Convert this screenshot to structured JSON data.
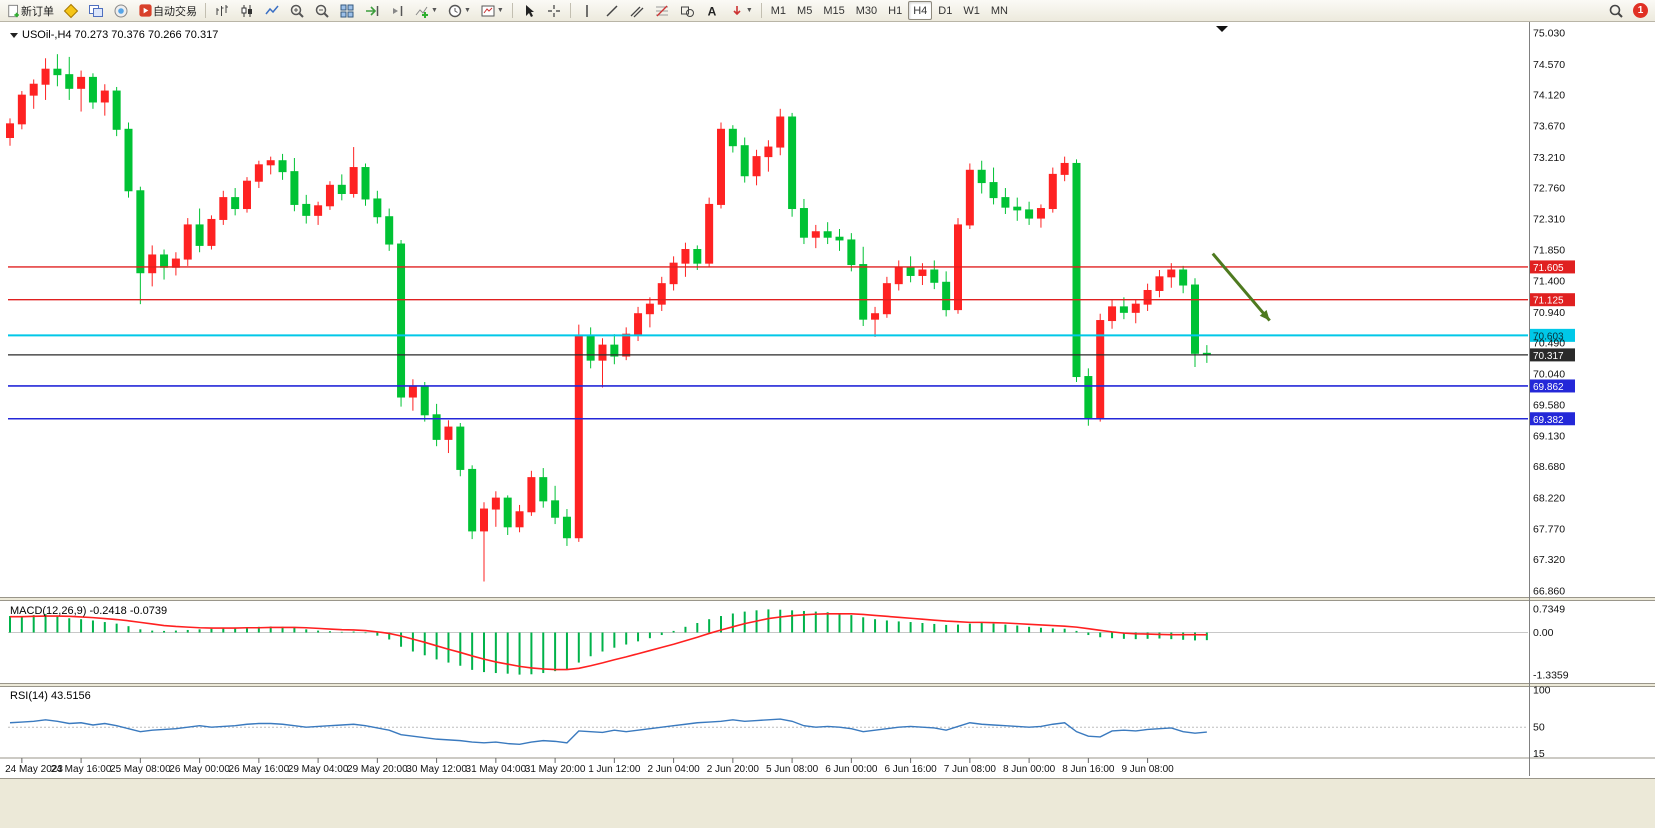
{
  "toolbar": {
    "new_order_label": "新订单",
    "autotrading_label": "自动交易",
    "timeframes": [
      "M1",
      "M5",
      "M15",
      "M30",
      "H1",
      "H4",
      "D1",
      "W1",
      "MN"
    ],
    "active_timeframe": "H4",
    "notification_badge": "1",
    "icon_buttons": [
      "new-order",
      "market-watch",
      "data-window",
      "navigator",
      "autotrading",
      "bar-chart",
      "candlestick-chart",
      "line-chart",
      "zoom-in",
      "zoom-out",
      "tile-windows",
      "auto-scroll",
      "chart-shift",
      "add-indicator",
      "periods",
      "templates",
      "cursor",
      "crosshair",
      "vertical-line",
      "trendline",
      "channel",
      "fibonacci",
      "shapes",
      "text",
      "arrows",
      "search"
    ]
  },
  "chart_data": {
    "type": "candlestick",
    "title": "USOil-,H4",
    "ohlc_label": "USOil-,H4 70.273 70.376 70.266 70.317",
    "colors": {
      "up": "#fe2222",
      "down": "#00c234",
      "background": "#ffffff"
    },
    "price_axis_ticks": [
      "75.030",
      "74.570",
      "74.120",
      "73.670",
      "73.210",
      "72.760",
      "72.310",
      "71.850",
      "71.400",
      "70.940",
      "70.490",
      "70.040",
      "69.580",
      "69.130",
      "68.680",
      "68.220",
      "67.770",
      "67.320",
      "66.860"
    ],
    "time_labels": [
      "24 May 2023",
      "24 May 16:00",
      "25 May 08:00",
      "26 May 00:00",
      "26 May 16:00",
      "29 May 04:00",
      "29 May 20:00",
      "30 May 12:00",
      "31 May 04:00",
      "31 May 20:00",
      "1 Jun 12:00",
      "2 Jun 04:00",
      "2 Jun 20:00",
      "5 Jun 08:00",
      "6 Jun 00:00",
      "6 Jun 16:00",
      "7 Jun 08:00",
      "8 Jun 00:00",
      "8 Jun 16:00",
      "9 Jun 08:00"
    ],
    "hlines": [
      {
        "price": 71.605,
        "tag": "71.605",
        "color": "#e02020",
        "width": 1.4,
        "tag_text": "#ffffff"
      },
      {
        "price": 71.125,
        "tag": "71.125",
        "color": "#e02020",
        "width": 1.4,
        "tag_text": "#ffffff"
      },
      {
        "price": 70.603,
        "tag": "70.603",
        "color": "#00c8e8",
        "width": 2.0,
        "tag_text": "#083038"
      },
      {
        "price": 70.317,
        "tag": "70.317",
        "color": "#2a2a2a",
        "width": 1.2,
        "tag_text": "#ffffff"
      },
      {
        "price": 69.862,
        "tag": "69.862",
        "color": "#2428d8",
        "width": 1.6,
        "tag_text": "#ffffff"
      },
      {
        "price": 69.382,
        "tag": "69.382",
        "color": "#2428d8",
        "width": 1.6,
        "tag_text": "#ffffff"
      }
    ],
    "annotations": {
      "arrow": {
        "from_bar": 101.5,
        "from_price": 71.8,
        "to_bar": 106.3,
        "to_price": 70.82,
        "color": "#4e7a1f"
      }
    },
    "candles": [
      [
        73.5,
        73.78,
        73.38,
        73.7
      ],
      [
        73.7,
        74.18,
        73.62,
        74.12
      ],
      [
        74.12,
        74.35,
        73.92,
        74.28
      ],
      [
        74.28,
        74.66,
        74.05,
        74.5
      ],
      [
        74.5,
        74.72,
        74.25,
        74.42
      ],
      [
        74.42,
        74.68,
        74.05,
        74.22
      ],
      [
        74.22,
        74.48,
        73.88,
        74.38
      ],
      [
        74.38,
        74.44,
        73.92,
        74.02
      ],
      [
        74.02,
        74.28,
        73.82,
        74.18
      ],
      [
        74.18,
        74.24,
        73.52,
        73.62
      ],
      [
        73.62,
        73.72,
        72.62,
        72.72
      ],
      [
        72.72,
        72.78,
        71.06,
        71.52
      ],
      [
        71.52,
        71.92,
        71.32,
        71.78
      ],
      [
        71.78,
        71.86,
        71.42,
        71.6
      ],
      [
        71.6,
        71.82,
        71.48,
        71.72
      ],
      [
        71.72,
        72.32,
        71.62,
        72.22
      ],
      [
        72.22,
        72.46,
        71.82,
        71.92
      ],
      [
        71.92,
        72.36,
        71.86,
        72.3
      ],
      [
        72.3,
        72.72,
        72.22,
        72.62
      ],
      [
        72.62,
        72.76,
        72.36,
        72.46
      ],
      [
        72.46,
        72.92,
        72.4,
        72.86
      ],
      [
        72.86,
        73.16,
        72.76,
        73.1
      ],
      [
        73.1,
        73.22,
        72.96,
        73.16
      ],
      [
        73.16,
        73.26,
        72.88,
        73.0
      ],
      [
        73.0,
        73.2,
        72.42,
        72.52
      ],
      [
        72.52,
        72.66,
        72.24,
        72.36
      ],
      [
        72.36,
        72.56,
        72.22,
        72.5
      ],
      [
        72.5,
        72.86,
        72.44,
        72.8
      ],
      [
        72.8,
        72.96,
        72.58,
        72.68
      ],
      [
        72.68,
        73.36,
        72.62,
        73.06
      ],
      [
        73.06,
        73.12,
        72.5,
        72.6
      ],
      [
        72.6,
        72.72,
        72.24,
        72.34
      ],
      [
        72.34,
        72.46,
        71.84,
        71.94
      ],
      [
        71.94,
        72.0,
        69.56,
        69.7
      ],
      [
        69.7,
        69.96,
        69.5,
        69.86
      ],
      [
        69.86,
        69.92,
        69.34,
        69.44
      ],
      [
        69.44,
        69.6,
        68.98,
        69.08
      ],
      [
        69.08,
        69.36,
        68.88,
        69.26
      ],
      [
        69.26,
        69.32,
        68.54,
        68.64
      ],
      [
        68.64,
        68.7,
        67.62,
        67.74
      ],
      [
        67.74,
        68.16,
        67.0,
        68.06
      ],
      [
        68.06,
        68.32,
        67.8,
        68.22
      ],
      [
        68.22,
        68.26,
        67.68,
        67.8
      ],
      [
        67.8,
        68.12,
        67.72,
        68.02
      ],
      [
        68.02,
        68.62,
        67.96,
        68.52
      ],
      [
        68.52,
        68.66,
        68.08,
        68.18
      ],
      [
        68.18,
        68.4,
        67.84,
        67.94
      ],
      [
        67.94,
        68.06,
        67.52,
        67.64
      ],
      [
        67.64,
        70.76,
        67.58,
        70.6
      ],
      [
        70.6,
        70.72,
        70.12,
        70.24
      ],
      [
        70.24,
        70.56,
        69.84,
        70.46
      ],
      [
        70.46,
        70.62,
        70.18,
        70.3
      ],
      [
        70.3,
        70.72,
        70.24,
        70.62
      ],
      [
        70.62,
        71.02,
        70.52,
        70.92
      ],
      [
        70.92,
        71.16,
        70.72,
        71.06
      ],
      [
        71.06,
        71.46,
        70.96,
        71.36
      ],
      [
        71.36,
        71.76,
        71.26,
        71.66
      ],
      [
        71.66,
        71.96,
        71.46,
        71.86
      ],
      [
        71.86,
        71.92,
        71.56,
        71.66
      ],
      [
        71.66,
        72.62,
        71.6,
        72.52
      ],
      [
        72.52,
        73.72,
        72.46,
        73.62
      ],
      [
        73.62,
        73.68,
        73.28,
        73.38
      ],
      [
        73.38,
        73.5,
        72.84,
        72.94
      ],
      [
        72.94,
        73.32,
        72.8,
        73.22
      ],
      [
        73.22,
        73.46,
        73.0,
        73.36
      ],
      [
        73.36,
        73.92,
        73.24,
        73.8
      ],
      [
        73.8,
        73.86,
        72.34,
        72.46
      ],
      [
        72.46,
        72.6,
        71.94,
        72.04
      ],
      [
        72.04,
        72.22,
        71.88,
        72.12
      ],
      [
        72.12,
        72.26,
        71.94,
        72.04
      ],
      [
        72.04,
        72.16,
        71.84,
        72.0
      ],
      [
        72.0,
        72.1,
        71.54,
        71.64
      ],
      [
        71.64,
        71.9,
        70.74,
        70.84
      ],
      [
        70.84,
        71.02,
        70.58,
        70.92
      ],
      [
        70.92,
        71.46,
        70.86,
        71.36
      ],
      [
        71.36,
        71.7,
        71.26,
        71.6
      ],
      [
        71.6,
        71.76,
        71.38,
        71.48
      ],
      [
        71.48,
        71.66,
        71.34,
        71.56
      ],
      [
        71.56,
        71.7,
        71.28,
        71.38
      ],
      [
        71.38,
        71.54,
        70.88,
        70.98
      ],
      [
        70.98,
        72.32,
        70.92,
        72.22
      ],
      [
        72.22,
        73.12,
        72.16,
        73.02
      ],
      [
        73.02,
        73.16,
        72.68,
        72.84
      ],
      [
        72.84,
        73.06,
        72.52,
        72.62
      ],
      [
        72.62,
        72.76,
        72.38,
        72.48
      ],
      [
        72.48,
        72.62,
        72.28,
        72.44
      ],
      [
        72.44,
        72.56,
        72.22,
        72.32
      ],
      [
        72.32,
        72.52,
        72.18,
        72.46
      ],
      [
        72.46,
        73.06,
        72.4,
        72.96
      ],
      [
        72.96,
        73.22,
        72.86,
        73.12
      ],
      [
        73.12,
        73.18,
        69.92,
        70.0
      ],
      [
        70.0,
        70.12,
        69.28,
        69.4
      ],
      [
        69.4,
        70.92,
        69.34,
        70.82
      ],
      [
        70.82,
        71.12,
        70.7,
        71.02
      ],
      [
        71.02,
        71.16,
        70.84,
        70.94
      ],
      [
        70.94,
        71.12,
        70.78,
        71.06
      ],
      [
        71.06,
        71.36,
        70.96,
        71.26
      ],
      [
        71.26,
        71.56,
        71.16,
        71.46
      ],
      [
        71.46,
        71.66,
        71.3,
        71.56
      ],
      [
        71.56,
        71.62,
        71.22,
        71.34
      ],
      [
        71.34,
        71.44,
        70.14,
        70.34
      ],
      [
        70.34,
        70.46,
        70.2,
        70.317
      ]
    ],
    "macd": {
      "label": "MACD(12,26,9) -0.2418 -0.0739",
      "histogram_color": "#00b24a",
      "signal_color": "#ff2020",
      "axis": [
        {
          "label": "0.7349",
          "value": 0.7349
        },
        {
          "label": "0.00",
          "value": 0
        },
        {
          "label": "-1.3359",
          "value": -1.3359
        }
      ],
      "histogram": [
        0.52,
        0.5,
        0.55,
        0.58,
        0.52,
        0.45,
        0.42,
        0.38,
        0.33,
        0.28,
        0.2,
        0.1,
        0.06,
        0.05,
        0.06,
        0.08,
        0.1,
        0.12,
        0.14,
        0.15,
        0.16,
        0.18,
        0.19,
        0.18,
        0.15,
        0.1,
        0.06,
        0.04,
        0.02,
        0.03,
        -0.02,
        -0.1,
        -0.22,
        -0.45,
        -0.6,
        -0.72,
        -0.85,
        -0.95,
        -1.05,
        -1.18,
        -1.25,
        -1.28,
        -1.3,
        -1.33,
        -1.32,
        -1.28,
        -1.22,
        -1.18,
        -0.95,
        -0.75,
        -0.6,
        -0.48,
        -0.38,
        -0.28,
        -0.18,
        -0.08,
        0.05,
        0.18,
        0.3,
        0.42,
        0.52,
        0.6,
        0.66,
        0.7,
        0.73,
        0.72,
        0.7,
        0.68,
        0.66,
        0.64,
        0.6,
        0.55,
        0.48,
        0.42,
        0.38,
        0.35,
        0.33,
        0.3,
        0.27,
        0.24,
        0.25,
        0.28,
        0.3,
        0.28,
        0.25,
        0.22,
        0.18,
        0.15,
        0.13,
        0.12,
        0.05,
        -0.08,
        -0.15,
        -0.18,
        -0.2,
        -0.21,
        -0.2,
        -0.19,
        -0.21,
        -0.23,
        -0.25,
        -0.2418
      ],
      "signal": [
        0.5,
        0.5,
        0.51,
        0.52,
        0.52,
        0.51,
        0.49,
        0.47,
        0.44,
        0.41,
        0.37,
        0.32,
        0.27,
        0.22,
        0.19,
        0.17,
        0.15,
        0.14,
        0.14,
        0.14,
        0.15,
        0.15,
        0.16,
        0.16,
        0.16,
        0.15,
        0.13,
        0.11,
        0.09,
        0.08,
        0.06,
        0.02,
        -0.03,
        -0.11,
        -0.21,
        -0.31,
        -0.42,
        -0.53,
        -0.63,
        -0.74,
        -0.84,
        -0.93,
        -1.0,
        -1.07,
        -1.12,
        -1.15,
        -1.17,
        -1.17,
        -1.13,
        -1.05,
        -0.96,
        -0.86,
        -0.77,
        -0.67,
        -0.57,
        -0.47,
        -0.37,
        -0.26,
        -0.15,
        -0.03,
        0.08,
        0.18,
        0.28,
        0.36,
        0.44,
        0.49,
        0.53,
        0.56,
        0.58,
        0.59,
        0.59,
        0.59,
        0.57,
        0.54,
        0.51,
        0.48,
        0.45,
        0.42,
        0.39,
        0.36,
        0.34,
        0.32,
        0.32,
        0.31,
        0.3,
        0.28,
        0.26,
        0.24,
        0.22,
        0.2,
        0.17,
        0.12,
        0.07,
        0.02,
        -0.02,
        -0.04,
        -0.05,
        -0.06,
        -0.07,
        -0.07,
        -0.07,
        -0.0739
      ]
    },
    "rsi": {
      "label": "RSI(14) 43.5156",
      "line_color": "#3a7abf",
      "levels": [
        50
      ],
      "axis": [
        {
          "label": "100",
          "value": 100
        },
        {
          "label": "50",
          "value": 50
        },
        {
          "label": "15",
          "value": 15
        }
      ],
      "values": [
        56,
        57,
        58,
        60,
        58,
        55,
        56,
        53,
        55,
        52,
        48,
        44,
        46,
        47,
        48,
        50,
        52,
        50,
        51,
        52,
        54,
        55,
        55,
        54,
        52,
        50,
        51,
        52,
        53,
        54,
        52,
        49,
        46,
        40,
        38,
        36,
        34,
        33,
        32,
        30,
        29,
        30,
        28,
        27,
        30,
        32,
        31,
        29,
        45,
        44,
        43,
        46,
        44,
        46,
        48,
        50,
        52,
        54,
        56,
        57,
        58,
        60,
        58,
        59,
        60,
        61,
        58,
        52,
        50,
        51,
        50,
        48,
        44,
        46,
        48,
        50,
        51,
        50,
        49,
        46,
        51,
        56,
        54,
        53,
        52,
        51,
        50,
        51,
        54,
        56,
        44,
        38,
        37,
        45,
        46,
        45,
        47,
        48,
        49,
        44,
        42,
        43.5
      ]
    }
  }
}
